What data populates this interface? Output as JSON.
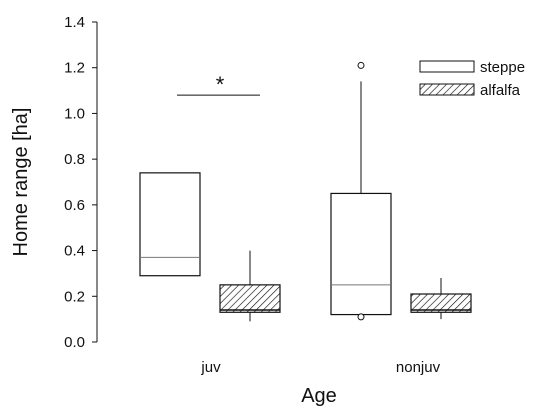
{
  "chart_data": {
    "type": "box",
    "xlabel": "Age",
    "ylabel": "Home range [ha]",
    "ylim": [
      0,
      1.4
    ],
    "y_ticks": [
      "0.0",
      "0.2",
      "0.4",
      "0.6",
      "0.8",
      "1.0",
      "1.2",
      "1.4"
    ],
    "categories": [
      "juv",
      "nonjuv"
    ],
    "legend": {
      "position": "top-right"
    },
    "series": [
      {
        "name": "steppe",
        "fill": "#ffffff",
        "pattern": "none",
        "boxes": [
          {
            "category": "juv",
            "q1": 0.29,
            "median": 0.37,
            "q3": 0.74,
            "whisker_low": 0.29,
            "whisker_high": 0.74,
            "outliers": []
          },
          {
            "category": "nonjuv",
            "q1": 0.12,
            "median": 0.25,
            "q3": 0.65,
            "whisker_low": 0.12,
            "whisker_high": 1.14,
            "outliers": [
              0.11,
              1.21
            ]
          }
        ]
      },
      {
        "name": "alfalfa",
        "fill": "#ffffff",
        "pattern": "diagonal-hatch",
        "boxes": [
          {
            "category": "juv",
            "q1": 0.13,
            "median": 0.14,
            "q3": 0.25,
            "whisker_low": 0.09,
            "whisker_high": 0.4,
            "outliers": []
          },
          {
            "category": "nonjuv",
            "q1": 0.13,
            "median": 0.14,
            "q3": 0.21,
            "whisker_low": 0.1,
            "whisker_high": 0.28,
            "outliers": []
          }
        ]
      }
    ],
    "annotations": [
      {
        "text": "*",
        "category": "juv",
        "y": 1.08
      }
    ]
  }
}
